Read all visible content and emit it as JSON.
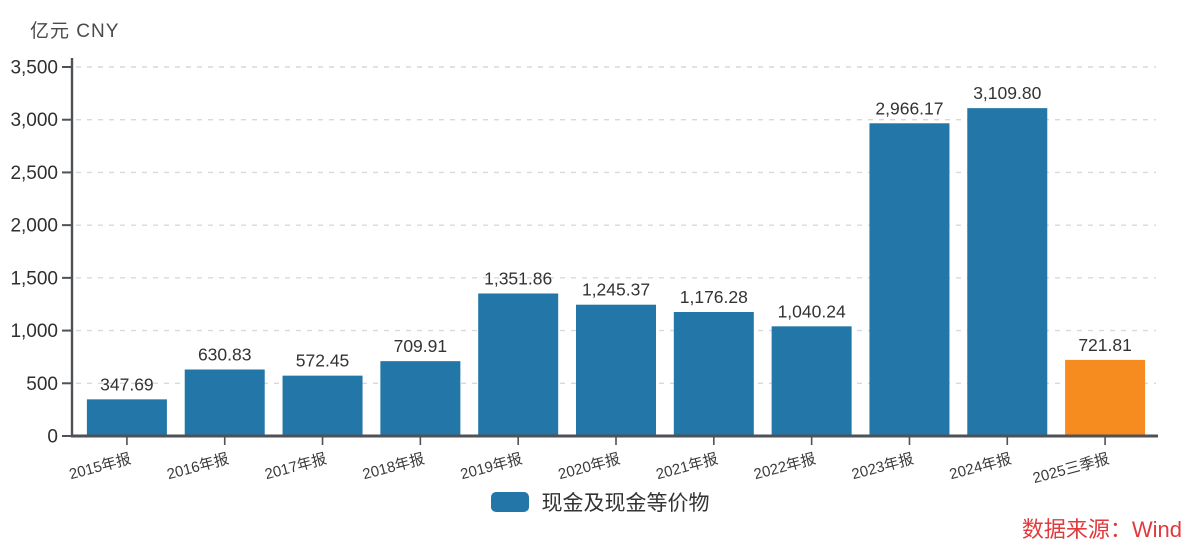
{
  "header": {
    "unit_label": "亿元 CNY"
  },
  "legend": {
    "label": "现金及现金等价物"
  },
  "source": {
    "label": "数据来源：Wind"
  },
  "colors": {
    "bar_default": "#2377A8",
    "bar_highlight": "#F68B1F",
    "source_text": "#E03A3C",
    "axis": "#4E5256",
    "grid": "#D9D9D9",
    "ytick_label": "#2F2F2F",
    "value_label": "#333333",
    "xtick_label": "#3A3A3A",
    "unit_label": "#4A4A4A"
  },
  "chart_data": {
    "type": "bar",
    "title": "",
    "ylabel": "亿元 CNY",
    "xlabel": "",
    "categories": [
      "2015年报",
      "2016年报",
      "2017年报",
      "2018年报",
      "2019年报",
      "2020年报",
      "2021年报",
      "2022年报",
      "2023年报",
      "2024年报",
      "2025三季报"
    ],
    "values": [
      347.69,
      630.83,
      572.45,
      709.91,
      1351.86,
      1245.37,
      1176.28,
      1040.24,
      2966.17,
      3109.8,
      721.81
    ],
    "value_labels": [
      "347.69",
      "630.83",
      "572.45",
      "709.91",
      "1,351.86",
      "1,245.37",
      "1,176.28",
      "1,040.24",
      "2,966.17",
      "3,109.80",
      "721.81"
    ],
    "bar_colors": [
      "#2377A8",
      "#2377A8",
      "#2377A8",
      "#2377A8",
      "#2377A8",
      "#2377A8",
      "#2377A8",
      "#2377A8",
      "#2377A8",
      "#2377A8",
      "#F68B1F"
    ],
    "ylim": [
      0,
      3500
    ],
    "ytick_values": [
      0,
      500,
      1000,
      1500,
      2000,
      2500,
      3000,
      3500
    ],
    "ytick_labels": [
      "0",
      "500",
      "1,000",
      "1,500",
      "2,000",
      "2,500",
      "3,000",
      "3,500"
    ],
    "grid": "horizontal-dashed",
    "legend_entries": [
      "现金及现金等价物"
    ],
    "legend_position": "bottom-center"
  }
}
